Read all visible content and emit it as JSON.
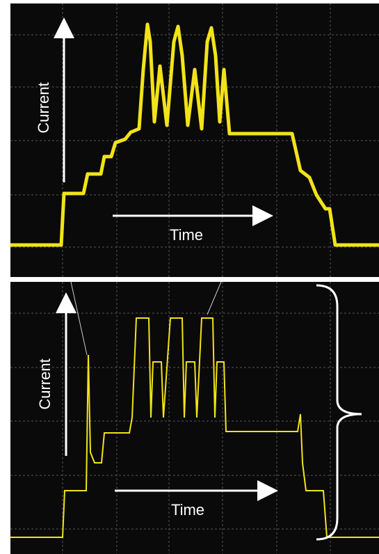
{
  "panels": [
    {
      "y_label": "Current",
      "x_label": "Time"
    },
    {
      "y_label": "Current",
      "x_label": "Time"
    }
  ]
}
